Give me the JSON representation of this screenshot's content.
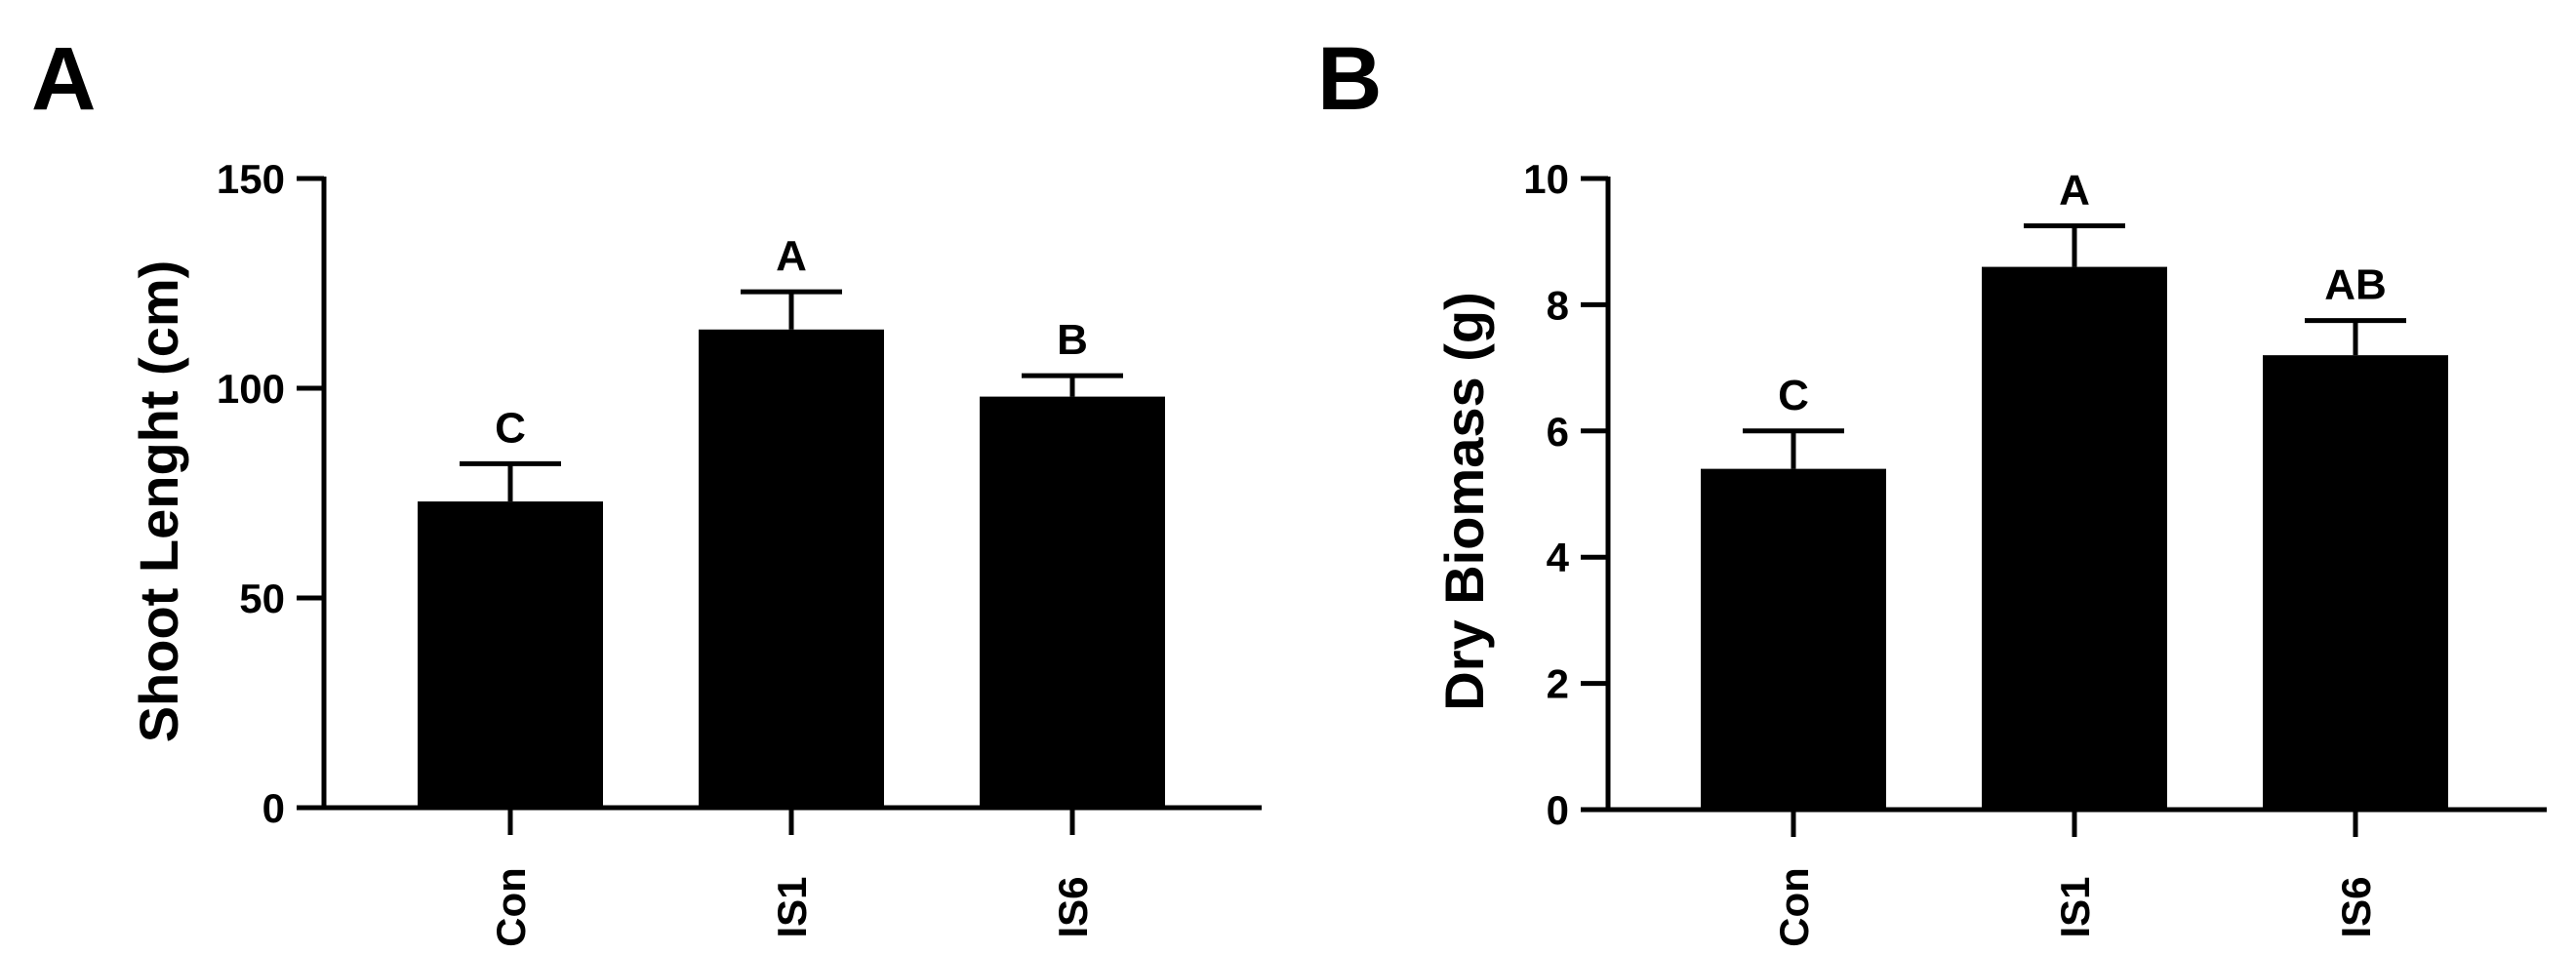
{
  "chart_data": [
    {
      "type": "bar",
      "panel_label": "A",
      "categories": [
        "Con",
        "IS1",
        "IS6"
      ],
      "values": [
        73,
        114,
        98
      ],
      "errors": [
        9,
        9,
        5
      ],
      "significance": [
        "C",
        "A",
        "B"
      ],
      "title": "",
      "xlabel": "",
      "ylabel": "Shoot Lenght (cm)",
      "ylim": [
        0,
        150
      ],
      "yticks": [
        0,
        50,
        100,
        150
      ],
      "ytick_labels": [
        "0",
        "50",
        "100",
        "150"
      ],
      "grid": false,
      "bar_color": "#000000"
    },
    {
      "type": "bar",
      "panel_label": "B",
      "categories": [
        "Con",
        "IS1",
        "IS6"
      ],
      "values": [
        5.4,
        8.6,
        7.2
      ],
      "errors": [
        0.6,
        0.65,
        0.55
      ],
      "significance": [
        "C",
        "A",
        "AB"
      ],
      "title": "",
      "xlabel": "",
      "ylabel": "Dry Biomass (g)",
      "ylim": [
        0,
        10
      ],
      "yticks": [
        0,
        2,
        4,
        6,
        8,
        10
      ],
      "ytick_labels": [
        "0",
        "2",
        "4",
        "6",
        "8",
        "10"
      ],
      "grid": false,
      "bar_color": "#000000"
    }
  ]
}
